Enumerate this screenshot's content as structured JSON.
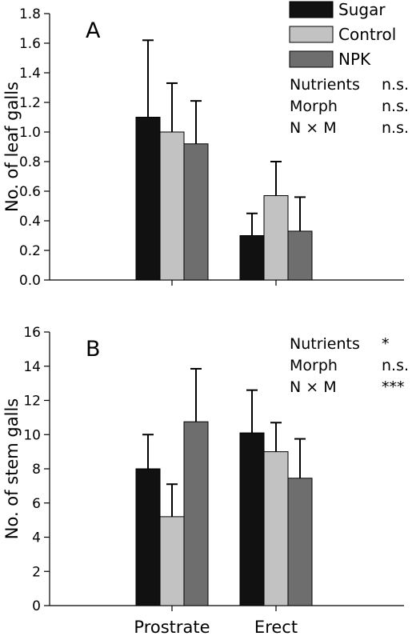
{
  "chart_data": [
    {
      "type": "bar",
      "panel_label": "A",
      "ylabel": "No. of leaf galls",
      "ylim": [
        0,
        1.8
      ],
      "yticks": [
        "0.0",
        "0.2",
        "0.4",
        "0.6",
        "0.8",
        "1.0",
        "1.2",
        "1.4",
        "1.6",
        "1.8"
      ],
      "categories": [
        "Prostrate",
        "Erect"
      ],
      "show_category_labels": false,
      "series": [
        {
          "name": "Sugar",
          "color": "#111111",
          "values": [
            1.1,
            0.3
          ],
          "errors": [
            0.52,
            0.15
          ]
        },
        {
          "name": "Control",
          "color": "#c2c2c2",
          "values": [
            1.0,
            0.57
          ],
          "errors": [
            0.33,
            0.23
          ]
        },
        {
          "name": "NPK",
          "color": "#6e6e6e",
          "values": [
            0.92,
            0.33
          ],
          "errors": [
            0.29,
            0.23
          ]
        }
      ],
      "legend": [
        {
          "label": "Sugar",
          "color": "#111111"
        },
        {
          "label": "Control",
          "color": "#c2c2c2"
        },
        {
          "label": "NPK",
          "color": "#6e6e6e"
        }
      ],
      "stats": [
        {
          "factor": "Nutrients",
          "result": "n.s."
        },
        {
          "factor": "Morph",
          "result": "n.s."
        },
        {
          "factor": "N × M",
          "result": "n.s."
        }
      ],
      "grid": false
    },
    {
      "type": "bar",
      "panel_label": "B",
      "ylabel": "No. of stem galls",
      "ylim": [
        0,
        16
      ],
      "yticks": [
        "0",
        "2",
        "4",
        "6",
        "8",
        "10",
        "12",
        "14",
        "16"
      ],
      "categories": [
        "Prostrate",
        "Erect"
      ],
      "show_category_labels": true,
      "series": [
        {
          "name": "Sugar",
          "color": "#111111",
          "values": [
            8.0,
            10.1
          ],
          "errors": [
            2.0,
            2.5
          ]
        },
        {
          "name": "Control",
          "color": "#c2c2c2",
          "values": [
            5.2,
            9.0
          ],
          "errors": [
            1.9,
            1.7
          ]
        },
        {
          "name": "NPK",
          "color": "#6e6e6e",
          "values": [
            10.75,
            7.45
          ],
          "errors": [
            3.1,
            2.3
          ]
        }
      ],
      "stats": [
        {
          "factor": "Nutrients",
          "result": "*"
        },
        {
          "factor": "Morph",
          "result": "n.s."
        },
        {
          "factor": "N × M",
          "result": "***"
        }
      ],
      "grid": false
    }
  ]
}
